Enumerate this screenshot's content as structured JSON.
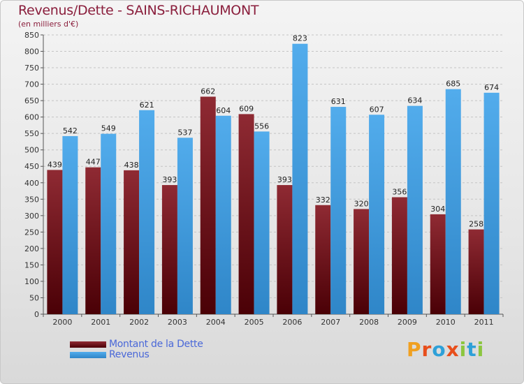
{
  "title": "Revenus/Dette - SAINS-RICHAUMONT",
  "subtitle": "(en milliers d'€)",
  "legend": {
    "dette_label": "Montant de la Dette",
    "revenus_label": "Revenus"
  },
  "logo_text": "Proxiti",
  "colors": {
    "dette": "#6b0a12",
    "revenus": "#3f9ee0",
    "title": "#8a1e3c",
    "legend_text": "#4a68d8"
  },
  "chart_data": {
    "type": "bar",
    "categories": [
      "2000",
      "2001",
      "2002",
      "2003",
      "2004",
      "2005",
      "2006",
      "2007",
      "2008",
      "2009",
      "2010",
      "2011"
    ],
    "series": [
      {
        "name": "Montant de la Dette",
        "values": [
          439,
          447,
          438,
          393,
          662,
          609,
          393,
          332,
          320,
          356,
          304,
          258
        ]
      },
      {
        "name": "Revenus",
        "values": [
          542,
          549,
          621,
          537,
          604,
          556,
          823,
          631,
          607,
          634,
          685,
          674
        ]
      }
    ],
    "ylim": [
      0,
      850
    ],
    "yticks": [
      0,
      50,
      100,
      150,
      200,
      250,
      300,
      350,
      400,
      450,
      500,
      550,
      600,
      650,
      700,
      750,
      800,
      850
    ],
    "grid": true,
    "legend_position": "bottom-left"
  }
}
